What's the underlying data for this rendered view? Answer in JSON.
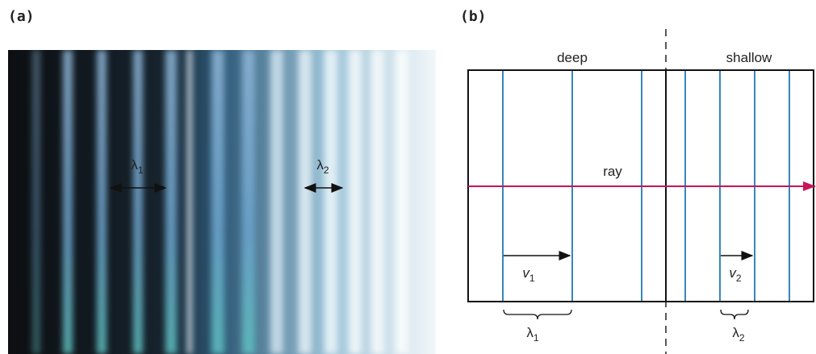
{
  "panel_a": {
    "label": "(a)",
    "wavelength_1": {
      "symbol": "λ",
      "subscript": "1"
    },
    "wavelength_2": {
      "symbol": "λ",
      "subscript": "2"
    }
  },
  "panel_b": {
    "label": "(b)",
    "region_left": "deep",
    "region_right": "shallow",
    "ray_label": "ray",
    "velocity_1": {
      "symbol": "v",
      "subscript": "1"
    },
    "velocity_2": {
      "symbol": "v",
      "subscript": "2"
    },
    "wavelength_1": {
      "symbol": "λ",
      "subscript": "1"
    },
    "wavelength_2": {
      "symbol": "λ",
      "subscript": "2"
    }
  }
}
